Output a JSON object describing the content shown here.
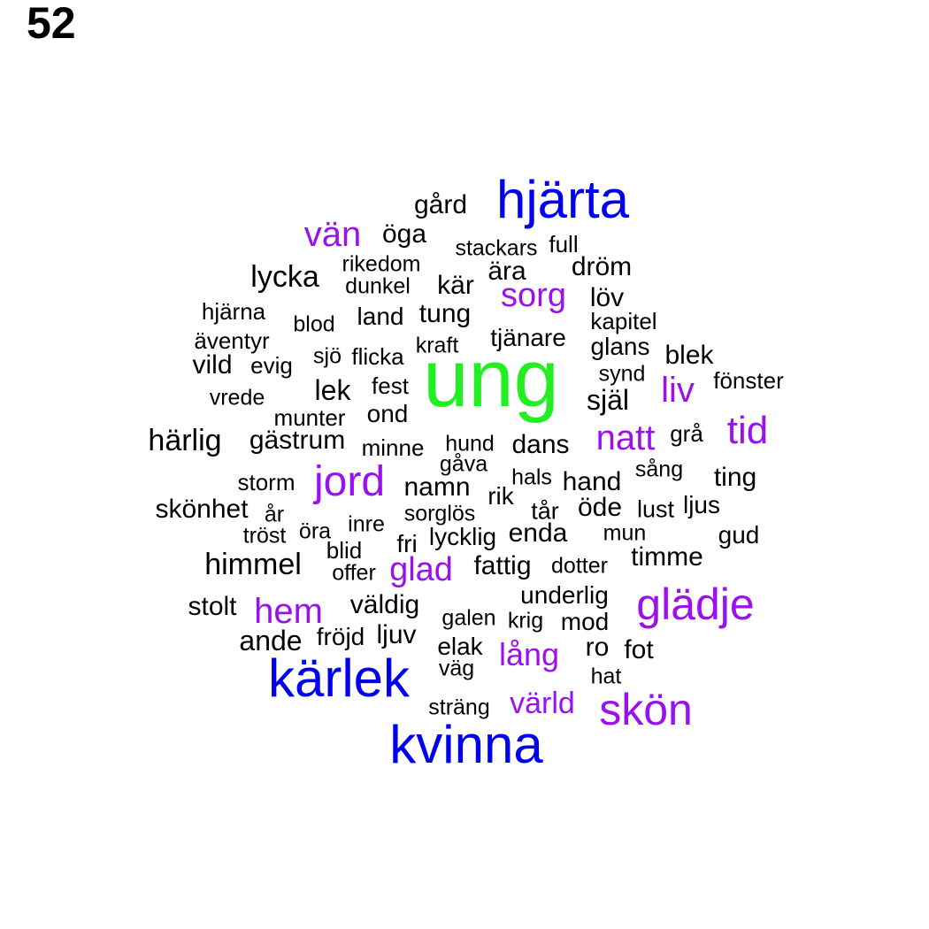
{
  "page_number": "52",
  "colors": {
    "green": "#22ee22",
    "blue": "#0000ee",
    "purple": "#9a10ee",
    "black": "#000000"
  },
  "words": [
    {
      "text": "ung",
      "size": 92,
      "color": "green"
    },
    {
      "text": "hjärta",
      "size": 60,
      "color": "blue"
    },
    {
      "text": "kärlek",
      "size": 60,
      "color": "blue"
    },
    {
      "text": "kvinna",
      "size": 60,
      "color": "blue"
    },
    {
      "text": "glädje",
      "size": 50,
      "color": "purple"
    },
    {
      "text": "skön",
      "size": 50,
      "color": "purple"
    },
    {
      "text": "jord",
      "size": 48,
      "color": "purple"
    },
    {
      "text": "tid",
      "size": 44,
      "color": "purple"
    },
    {
      "text": "natt",
      "size": 40,
      "color": "purple"
    },
    {
      "text": "liv",
      "size": 40,
      "color": "purple"
    },
    {
      "text": "hem",
      "size": 40,
      "color": "purple"
    },
    {
      "text": "vän",
      "size": 40,
      "color": "purple"
    },
    {
      "text": "sorg",
      "size": 38,
      "color": "purple"
    },
    {
      "text": "glad",
      "size": 38,
      "color": "purple"
    },
    {
      "text": "lång",
      "size": 36,
      "color": "purple"
    },
    {
      "text": "värld",
      "size": 34,
      "color": "purple"
    },
    {
      "text": "lycka",
      "size": 34,
      "color": "black"
    },
    {
      "text": "härlig",
      "size": 34,
      "color": "black"
    },
    {
      "text": "himmel",
      "size": 34,
      "color": "black"
    },
    {
      "text": "ande",
      "size": 32,
      "color": "black"
    },
    {
      "text": "själ",
      "size": 32,
      "color": "black"
    },
    {
      "text": "lek",
      "size": 32,
      "color": "black"
    },
    {
      "text": "dans",
      "size": 30,
      "color": "black"
    },
    {
      "text": "dröm",
      "size": 30,
      "color": "black"
    },
    {
      "text": "tung",
      "size": 30,
      "color": "black"
    },
    {
      "text": "löv",
      "size": 30,
      "color": "black"
    },
    {
      "text": "timme",
      "size": 30,
      "color": "black"
    },
    {
      "text": "fattig",
      "size": 30,
      "color": "black"
    },
    {
      "text": "öde",
      "size": 30,
      "color": "black"
    },
    {
      "text": "kär",
      "size": 30,
      "color": "black"
    },
    {
      "text": "vild",
      "size": 30,
      "color": "black"
    },
    {
      "text": "ära",
      "size": 30,
      "color": "black"
    },
    {
      "text": "öga",
      "size": 30,
      "color": "black"
    },
    {
      "text": "gård",
      "size": 30,
      "color": "black"
    },
    {
      "text": "blek",
      "size": 30,
      "color": "black"
    },
    {
      "text": "gästrum",
      "size": 30,
      "color": "black"
    },
    {
      "text": "namn",
      "size": 30,
      "color": "black"
    },
    {
      "text": "enda",
      "size": 30,
      "color": "black"
    },
    {
      "text": "hand",
      "size": 30,
      "color": "black"
    },
    {
      "text": "ting",
      "size": 30,
      "color": "black"
    },
    {
      "text": "skönhet",
      "size": 30,
      "color": "black"
    },
    {
      "text": "stolt",
      "size": 30,
      "color": "black"
    },
    {
      "text": "väldig",
      "size": 30,
      "color": "black"
    },
    {
      "text": "ljuv",
      "size": 30,
      "color": "black"
    },
    {
      "text": "ro",
      "size": 30,
      "color": "black"
    },
    {
      "text": "fot",
      "size": 30,
      "color": "black"
    },
    {
      "text": "tjänare",
      "size": 28,
      "color": "black"
    },
    {
      "text": "land",
      "size": 28,
      "color": "black"
    },
    {
      "text": "ond",
      "size": 28,
      "color": "black"
    },
    {
      "text": "mod",
      "size": 28,
      "color": "black"
    },
    {
      "text": "underlig",
      "size": 28,
      "color": "black"
    },
    {
      "text": "fröjd",
      "size": 28,
      "color": "black"
    },
    {
      "text": "elak",
      "size": 28,
      "color": "black"
    },
    {
      "text": "fri",
      "size": 28,
      "color": "black"
    },
    {
      "text": "lycklig",
      "size": 28,
      "color": "black"
    },
    {
      "text": "rik",
      "size": 28,
      "color": "black"
    },
    {
      "text": "gud",
      "size": 28,
      "color": "black"
    },
    {
      "text": "ljus",
      "size": 28,
      "color": "black"
    },
    {
      "text": "lust",
      "size": 27,
      "color": "black"
    },
    {
      "text": "tår",
      "size": 27,
      "color": "black"
    },
    {
      "text": "grå",
      "size": 26,
      "color": "black"
    },
    {
      "text": "evig",
      "size": 26,
      "color": "black"
    },
    {
      "text": "fest",
      "size": 26,
      "color": "black"
    },
    {
      "text": "glans",
      "size": 28,
      "color": "black"
    },
    {
      "text": "blid",
      "size": 26,
      "color": "black"
    },
    {
      "text": "fönster",
      "size": 26,
      "color": "black"
    },
    {
      "text": "minne",
      "size": 26,
      "color": "black"
    },
    {
      "text": "storm",
      "size": 26,
      "color": "black"
    },
    {
      "text": "kapitel",
      "size": 26,
      "color": "black"
    },
    {
      "text": "full",
      "size": 26,
      "color": "black"
    },
    {
      "text": "flicka",
      "size": 26,
      "color": "black"
    },
    {
      "text": "äventyr",
      "size": 26,
      "color": "black"
    },
    {
      "text": "hjärna",
      "size": 26,
      "color": "black"
    },
    {
      "text": "munter",
      "size": 26,
      "color": "black"
    },
    {
      "text": "rikedom",
      "size": 25,
      "color": "black"
    },
    {
      "text": "dunkel",
      "size": 25,
      "color": "black"
    },
    {
      "text": "stackars",
      "size": 25,
      "color": "black"
    },
    {
      "text": "vrede",
      "size": 25,
      "color": "black"
    },
    {
      "text": "blod",
      "size": 25,
      "color": "black"
    },
    {
      "text": "sorglös",
      "size": 25,
      "color": "black"
    },
    {
      "text": "dotter",
      "size": 25,
      "color": "black"
    },
    {
      "text": "galen",
      "size": 25,
      "color": "black"
    },
    {
      "text": "krig",
      "size": 25,
      "color": "black"
    },
    {
      "text": "väg",
      "size": 25,
      "color": "black"
    },
    {
      "text": "hat",
      "size": 25,
      "color": "black"
    },
    {
      "text": "sträng",
      "size": 25,
      "color": "black"
    },
    {
      "text": "gåva",
      "size": 25,
      "color": "black"
    },
    {
      "text": "hund",
      "size": 25,
      "color": "black"
    },
    {
      "text": "hals",
      "size": 25,
      "color": "black"
    },
    {
      "text": "sång",
      "size": 25,
      "color": "black"
    },
    {
      "text": "synd",
      "size": 25,
      "color": "black"
    },
    {
      "text": "kraft",
      "size": 25,
      "color": "black"
    },
    {
      "text": "sjö",
      "size": 25,
      "color": "black"
    },
    {
      "text": "inre",
      "size": 25,
      "color": "black"
    },
    {
      "text": "år",
      "size": 25,
      "color": "black"
    },
    {
      "text": "öra",
      "size": 25,
      "color": "black"
    },
    {
      "text": "tröst",
      "size": 25,
      "color": "black"
    },
    {
      "text": "offer",
      "size": 25,
      "color": "black"
    },
    {
      "text": "mun",
      "size": 25,
      "color": "black"
    }
  ]
}
